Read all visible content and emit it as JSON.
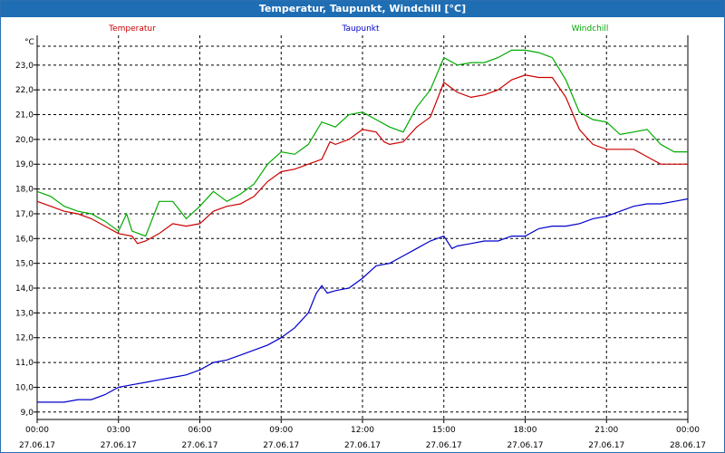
{
  "window": {
    "title": "Temperatur, Taupunkt, Windchill [°C]"
  },
  "chart_data": {
    "type": "line",
    "title": "Temperatur, Taupunkt, Windchill [°C]",
    "ylabel": "°C",
    "xlabel": "",
    "ylim": [
      8.7,
      24.2
    ],
    "xlim": [
      0,
      24
    ],
    "grid": true,
    "yticks": [
      9.0,
      10.0,
      11.0,
      12.0,
      13.0,
      14.0,
      15.0,
      16.0,
      17.0,
      18.0,
      19.0,
      20.0,
      21.0,
      22.0,
      23.0
    ],
    "ytick_labels": [
      "9,0",
      "10,0",
      "11,0",
      "12,0",
      "13,0",
      "14,0",
      "15,0",
      "16,0",
      "17,0",
      "18,0",
      "19,0",
      "20,0",
      "21,0",
      "22,0",
      "23,0"
    ],
    "xticks": [
      {
        "x": 0,
        "time": "00:00",
        "date": "27.06.17"
      },
      {
        "x": 3,
        "time": "03:00",
        "date": "27.06.17"
      },
      {
        "x": 6,
        "time": "06:00",
        "date": "27.06.17"
      },
      {
        "x": 9,
        "time": "09:00",
        "date": "27.06.17"
      },
      {
        "x": 12,
        "time": "12:00",
        "date": "27.06.17"
      },
      {
        "x": 15,
        "time": "15:00",
        "date": "27.06.17"
      },
      {
        "x": 18,
        "time": "18:00",
        "date": "27.06.17"
      },
      {
        "x": 21,
        "time": "21:00",
        "date": "27.06.17"
      },
      {
        "x": 24,
        "time": "00:00",
        "date": "28.06.17"
      }
    ],
    "series": [
      {
        "name": "Temperatur",
        "color": "#cc0000",
        "points": [
          [
            0,
            17.5
          ],
          [
            0.5,
            17.3
          ],
          [
            1,
            17.1
          ],
          [
            1.5,
            17.0
          ],
          [
            2,
            16.8
          ],
          [
            2.5,
            16.5
          ],
          [
            3,
            16.2
          ],
          [
            3.5,
            16.1
          ],
          [
            3.7,
            15.8
          ],
          [
            4,
            15.9
          ],
          [
            4.5,
            16.2
          ],
          [
            5,
            16.6
          ],
          [
            5.5,
            16.5
          ],
          [
            6,
            16.6
          ],
          [
            6.5,
            17.1
          ],
          [
            7,
            17.3
          ],
          [
            7.5,
            17.4
          ],
          [
            8,
            17.7
          ],
          [
            8.5,
            18.3
          ],
          [
            9,
            18.7
          ],
          [
            9.5,
            18.8
          ],
          [
            10,
            19.0
          ],
          [
            10.5,
            19.2
          ],
          [
            10.8,
            19.9
          ],
          [
            11,
            19.8
          ],
          [
            11.5,
            20.0
          ],
          [
            12,
            20.4
          ],
          [
            12.5,
            20.3
          ],
          [
            12.8,
            19.9
          ],
          [
            13,
            19.8
          ],
          [
            13.5,
            19.9
          ],
          [
            14,
            20.5
          ],
          [
            14.5,
            20.9
          ],
          [
            15,
            22.3
          ],
          [
            15.5,
            21.9
          ],
          [
            16,
            21.7
          ],
          [
            16.5,
            21.8
          ],
          [
            17,
            22.0
          ],
          [
            17.5,
            22.4
          ],
          [
            18,
            22.6
          ],
          [
            18.5,
            22.5
          ],
          [
            19,
            22.5
          ],
          [
            19.5,
            21.7
          ],
          [
            20,
            20.4
          ],
          [
            20.5,
            19.8
          ],
          [
            21,
            19.6
          ],
          [
            21.5,
            19.6
          ],
          [
            22,
            19.6
          ],
          [
            22.5,
            19.3
          ],
          [
            23,
            19.0
          ],
          [
            23.5,
            19.0
          ],
          [
            24,
            19.0
          ]
        ]
      },
      {
        "name": "Taupunkt",
        "color": "#0000cc",
        "points": [
          [
            0,
            9.4
          ],
          [
            0.5,
            9.4
          ],
          [
            1,
            9.4
          ],
          [
            1.5,
            9.5
          ],
          [
            2,
            9.5
          ],
          [
            2.5,
            9.7
          ],
          [
            3,
            10.0
          ],
          [
            3.5,
            10.1
          ],
          [
            4,
            10.2
          ],
          [
            4.5,
            10.3
          ],
          [
            5,
            10.4
          ],
          [
            5.5,
            10.5
          ],
          [
            6,
            10.7
          ],
          [
            6.5,
            11.0
          ],
          [
            7,
            11.1
          ],
          [
            7.5,
            11.3
          ],
          [
            8,
            11.5
          ],
          [
            8.5,
            11.7
          ],
          [
            9,
            12.0
          ],
          [
            9.5,
            12.4
          ],
          [
            10,
            13.0
          ],
          [
            10.3,
            13.8
          ],
          [
            10.5,
            14.1
          ],
          [
            10.7,
            13.8
          ],
          [
            11,
            13.9
          ],
          [
            11.5,
            14.0
          ],
          [
            12,
            14.4
          ],
          [
            12.5,
            14.9
          ],
          [
            13,
            15.0
          ],
          [
            13.5,
            15.3
          ],
          [
            14,
            15.6
          ],
          [
            14.5,
            15.9
          ],
          [
            15,
            16.1
          ],
          [
            15.3,
            15.6
          ],
          [
            15.5,
            15.7
          ],
          [
            16,
            15.8
          ],
          [
            16.5,
            15.9
          ],
          [
            17,
            15.9
          ],
          [
            17.5,
            16.1
          ],
          [
            18,
            16.1
          ],
          [
            18.5,
            16.4
          ],
          [
            19,
            16.5
          ],
          [
            19.5,
            16.5
          ],
          [
            20,
            16.6
          ],
          [
            20.5,
            16.8
          ],
          [
            21,
            16.9
          ],
          [
            21.5,
            17.1
          ],
          [
            22,
            17.3
          ],
          [
            22.5,
            17.4
          ],
          [
            23,
            17.4
          ],
          [
            23.5,
            17.5
          ],
          [
            24,
            17.6
          ]
        ]
      },
      {
        "name": "Windchill",
        "color": "#00aa00",
        "points": [
          [
            0,
            17.9
          ],
          [
            0.5,
            17.7
          ],
          [
            1,
            17.3
          ],
          [
            1.5,
            17.1
          ],
          [
            2,
            17.0
          ],
          [
            2.5,
            16.7
          ],
          [
            3,
            16.3
          ],
          [
            3.3,
            17.0
          ],
          [
            3.5,
            16.3
          ],
          [
            4,
            16.1
          ],
          [
            4.5,
            17.5
          ],
          [
            5,
            17.5
          ],
          [
            5.5,
            16.8
          ],
          [
            6,
            17.3
          ],
          [
            6.5,
            17.9
          ],
          [
            7,
            17.5
          ],
          [
            7.5,
            17.8
          ],
          [
            8,
            18.2
          ],
          [
            8.5,
            19.0
          ],
          [
            9,
            19.5
          ],
          [
            9.5,
            19.4
          ],
          [
            10,
            19.8
          ],
          [
            10.5,
            20.7
          ],
          [
            11,
            20.5
          ],
          [
            11.5,
            21.0
          ],
          [
            12,
            21.1
          ],
          [
            12.5,
            20.8
          ],
          [
            13,
            20.5
          ],
          [
            13.5,
            20.3
          ],
          [
            14,
            21.3
          ],
          [
            14.5,
            22.0
          ],
          [
            15,
            23.3
          ],
          [
            15.5,
            23.0
          ],
          [
            16,
            23.1
          ],
          [
            16.5,
            23.1
          ],
          [
            17,
            23.3
          ],
          [
            17.5,
            23.6
          ],
          [
            18,
            23.6
          ],
          [
            18.5,
            23.5
          ],
          [
            19,
            23.3
          ],
          [
            19.5,
            22.4
          ],
          [
            20,
            21.1
          ],
          [
            20.5,
            20.8
          ],
          [
            21,
            20.7
          ],
          [
            21.5,
            20.2
          ],
          [
            22,
            20.3
          ],
          [
            22.5,
            20.4
          ],
          [
            23,
            19.8
          ],
          [
            23.5,
            19.5
          ],
          [
            24,
            19.5
          ]
        ]
      }
    ]
  }
}
